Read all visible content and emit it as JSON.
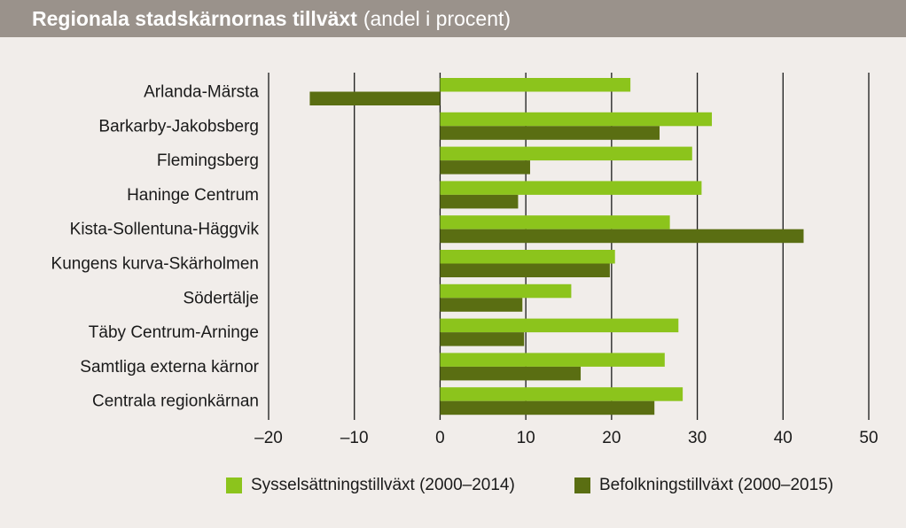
{
  "header": {
    "title": "Regionala stadskärnornas tillväxt",
    "subtitle": "(andel i procent)"
  },
  "colors": {
    "series_employment": "#8cc41c",
    "series_population": "#5a6e12",
    "title_bar": "#9a928b",
    "background": "#f1edea"
  },
  "chart_data": {
    "type": "bar",
    "orientation": "horizontal",
    "title": "Regionala stadskärnornas tillväxt",
    "subtitle": "(andel i procent)",
    "categories": [
      "Arlanda-Märsta",
      "Barkarby-Jakobsberg",
      "Flemingsberg",
      "Haninge Centrum",
      "Kista-Sollentuna-Häggvik",
      "Kungens kurva-Skärholmen",
      "Södertälje",
      "Täby Centrum-Arninge",
      "Samtliga externa kärnor",
      "Centrala regionkärnan"
    ],
    "series": [
      {
        "name": "Sysselsättningstillväxt (2000–2014)",
        "color": "#8cc41c",
        "values": [
          22.2,
          31.7,
          29.4,
          30.5,
          26.8,
          20.4,
          15.3,
          27.8,
          26.2,
          28.3
        ]
      },
      {
        "name": "Befolkningstillväxt (2000–2015)",
        "color": "#5a6e12",
        "values": [
          -15.2,
          25.6,
          10.5,
          9.1,
          42.4,
          19.8,
          9.6,
          9.8,
          16.4,
          25.0
        ]
      }
    ],
    "xlim": [
      -20,
      50
    ],
    "xticks": [
      -20,
      -10,
      0,
      10,
      20,
      30,
      40,
      50
    ],
    "xtick_labels": [
      "–20",
      "–10",
      "0",
      "10",
      "20",
      "30",
      "40",
      "50"
    ],
    "grid": "vertical",
    "legend_position": "bottom-right"
  }
}
